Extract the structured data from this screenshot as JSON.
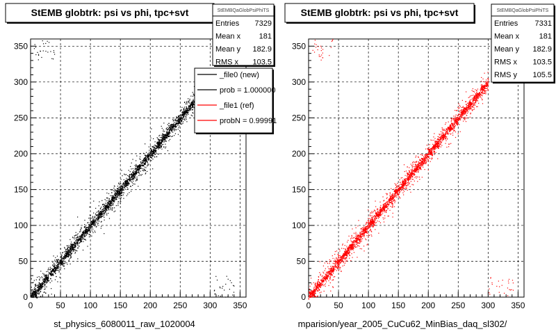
{
  "colors": {
    "black": "#000000",
    "red": "#ff0000",
    "bg": "#ffffff"
  },
  "footer_text": "",
  "chart_data": [
    {
      "type": "scatter",
      "title": "StEMB globtrk: psi vs phi, tpc+svt",
      "xlabel": "st_physics_6080011_raw_1020004",
      "ylabel": "",
      "xlim": [
        0,
        360
      ],
      "ylim": [
        0,
        360
      ],
      "x_ticks": [
        "0",
        "50",
        "100",
        "150",
        "200",
        "250",
        "300",
        "350"
      ],
      "y_ticks": [
        "0",
        "50",
        "100",
        "150",
        "200",
        "250",
        "300",
        "350"
      ],
      "grid": true,
      "marker_color": "#000000",
      "stats": {
        "name": "StEMBQaGlobPsiPhiTS",
        "rows": [
          {
            "label": "Entries",
            "value": "7329"
          },
          {
            "label": "Mean x",
            "value": "181"
          },
          {
            "label": "Mean y",
            "value": "182.9"
          },
          {
            "label": "RMS x",
            "value": "103.5"
          }
        ]
      },
      "legend": {
        "position": "top-right",
        "entries": [
          {
            "label": "_file0 (new)",
            "color": "#000000"
          },
          {
            "label": "prob = 1.000000",
            "color": "#000000"
          },
          {
            "label": "_file1 (ref)",
            "color": "#ff0000"
          },
          {
            "label": "probN = 0.99991",
            "color": "#ff0000"
          }
        ]
      },
      "trend": {
        "slope": 1.0,
        "intercept": 0,
        "x_range": [
          0,
          300
        ]
      },
      "outlier_clusters": [
        {
          "x": [
            5,
            40
          ],
          "y": [
            330,
            360
          ]
        },
        {
          "x": [
            300,
            340
          ],
          "y": [
            0,
            30
          ]
        }
      ]
    },
    {
      "type": "scatter",
      "title": "StEMB globtrk: psi vs phi, tpc+svt",
      "xlabel": "mparision/year_2005_CuCu62_MinBias_daq_sl302/",
      "ylabel": "",
      "xlim": [
        0,
        360
      ],
      "ylim": [
        0,
        360
      ],
      "x_ticks": [
        "0",
        "50",
        "100",
        "150",
        "200",
        "250",
        "300",
        "350"
      ],
      "y_ticks": [
        "0",
        "50",
        "100",
        "150",
        "200",
        "250",
        "300",
        "350"
      ],
      "grid": true,
      "marker_color": "#ff0000",
      "stats": {
        "name": "StEMBQaGlobPsiPhiTS",
        "rows": [
          {
            "label": "Entries",
            "value": "7331"
          },
          {
            "label": "Mean x",
            "value": "181"
          },
          {
            "label": "Mean y",
            "value": "182.9"
          },
          {
            "label": "RMS x",
            "value": "103.5"
          },
          {
            "label": "RMS y",
            "value": "105.5"
          }
        ]
      },
      "trend": {
        "slope": 1.0,
        "intercept": 0,
        "x_range": [
          0,
          300
        ]
      },
      "outlier_clusters": [
        {
          "x": [
            5,
            40
          ],
          "y": [
            330,
            360
          ]
        },
        {
          "x": [
            300,
            345
          ],
          "y": [
            0,
            30
          ]
        }
      ]
    }
  ]
}
